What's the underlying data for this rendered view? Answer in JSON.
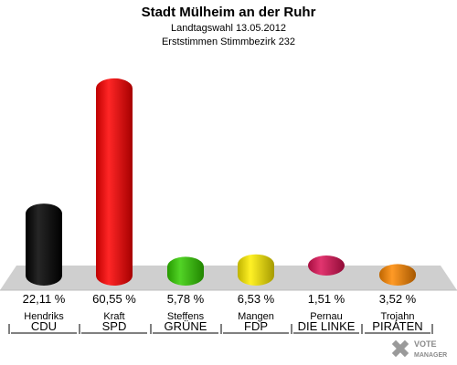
{
  "header": {
    "title": "Stadt Mülheim an der Ruhr",
    "subtitle1": "Landtagswahl 13.05.2012",
    "subtitle2": "Erststimmen Stimmbezirk 232"
  },
  "logo": {
    "line1": "VOTE",
    "line2": "MANAGER"
  },
  "chart_data": {
    "type": "bar",
    "title": "Stadt Mülheim an der Ruhr",
    "subtitle": "Landtagswahl 13.05.2012 — Erststimmen Stimmbezirk 232",
    "ylim": [
      0,
      65
    ],
    "grid": false,
    "candidates": [
      "Hendriks",
      "Kraft",
      "Steffens",
      "Mangen",
      "Pernau",
      "Trojahn"
    ],
    "categories": [
      "CDU",
      "SPD",
      "GRÜNE",
      "FDP",
      "DIE LINKE",
      "PIRATEN"
    ],
    "values": [
      22.11,
      60.55,
      5.78,
      6.53,
      1.51,
      3.52
    ],
    "labels": [
      "22,11 %",
      "60,55 %",
      "5,78 %",
      "6,53 %",
      "1,51 %",
      "3,52 %"
    ],
    "colors": [
      "#000000",
      "#ff0000",
      "#33cc00",
      "#ffee00",
      "#dd1155",
      "#ff8800"
    ]
  }
}
